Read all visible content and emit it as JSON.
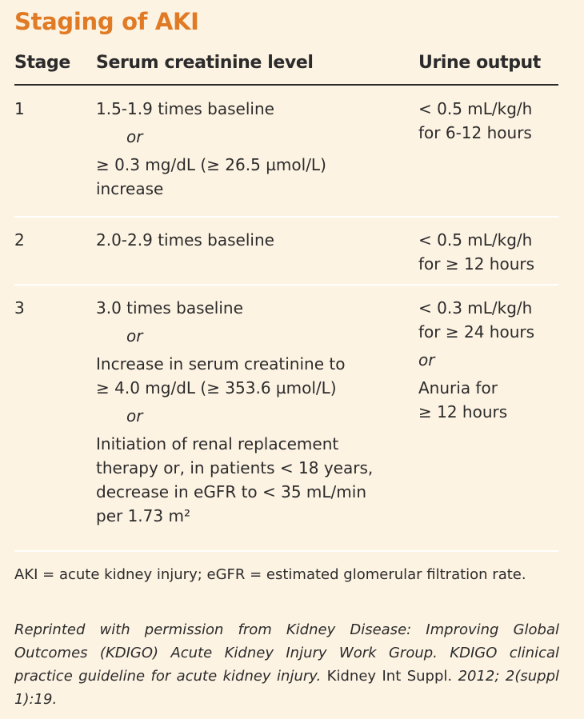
{
  "title": "Staging of AKI",
  "headers": {
    "stage": "Stage",
    "serum": "Serum creatinine level",
    "urine": "Urine output"
  },
  "or_word": "or",
  "rows": [
    {
      "stage": "1",
      "serum": {
        "a": "1.5-1.9 times baseline",
        "b1": "≥ 0.3 mg/dL (≥ 26.5 µmol/L)",
        "b2": "increase"
      },
      "urine": {
        "l1": "< 0.5 mL/kg/h",
        "l2": "for 6-12 hours"
      }
    },
    {
      "stage": "2",
      "serum": {
        "a": "2.0-2.9 times baseline"
      },
      "urine": {
        "l1": "< 0.5 mL/kg/h",
        "l2": "for ≥ 12 hours"
      }
    },
    {
      "stage": "3",
      "serum": {
        "a": "3.0 times baseline",
        "b1": "Increase in serum creatinine to",
        "b2": "≥ 4.0 mg/dL (≥ 353.6 µmol/L)",
        "c1": "Initiation of renal replacement",
        "c2": "therapy or, in patients < 18 years,",
        "c3": "decrease in eGFR to < 35 mL/min",
        "c4": "per 1.73 m²"
      },
      "urine": {
        "l1": "< 0.3 mL/kg/h",
        "l2": "for ≥ 24 hours",
        "l3": "Anuria for",
        "l4": "≥ 12 hours"
      }
    }
  ],
  "footnote": "AKI = acute kidney injury; eGFR = estimated glomerular filtration rate.",
  "source": {
    "italic_part": "Reprinted with permission from Kidney Disease: Improving Global Outcomes (KDIGO) Acute Kidney Injury Work Group. KDIGO clinical practice guideline for acute kidney injury.",
    "journal": " Kidney Int Suppl. ",
    "year_italic": "2012; 2(suppl 1):19."
  },
  "colors": {
    "background": "#fdf3e3",
    "title": "#e07a24",
    "text": "#2b2b2b"
  }
}
